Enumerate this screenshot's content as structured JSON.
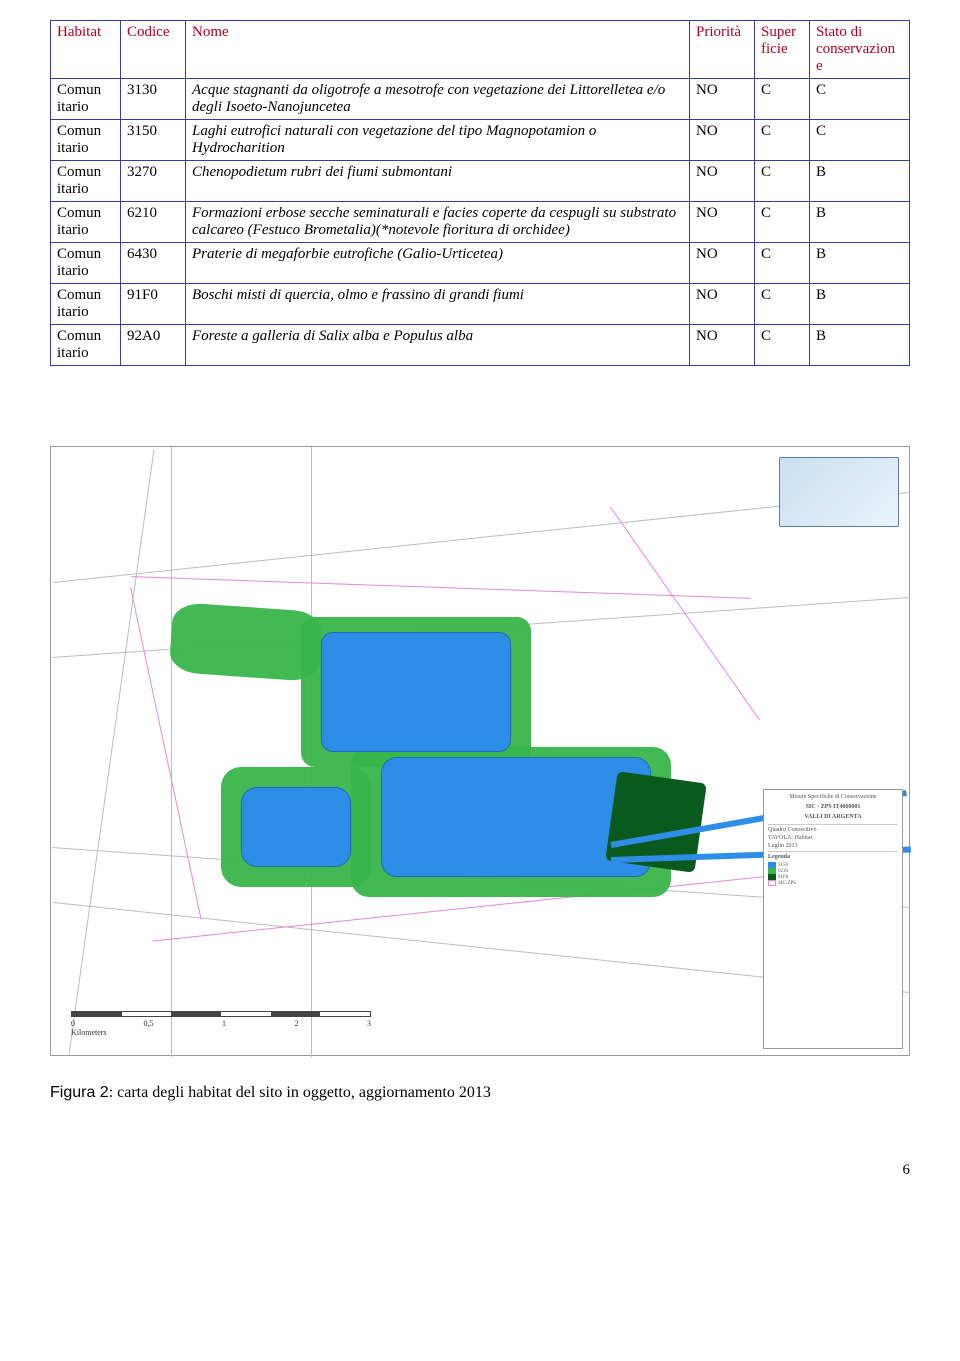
{
  "table": {
    "headers": {
      "habitat": "Habitat",
      "codice": "Codice",
      "nome": "Nome",
      "priorita": "Priorità",
      "superficie": "Super ficie",
      "stato": "Stato di conservazion e"
    },
    "rows": [
      {
        "habitat": "Comun itario",
        "codice": "3130",
        "nome": "Acque stagnanti da oligotrofe a mesotrofe con vegetazione dei Littorelletea e/o degli Isoeto-Nanojuncetea",
        "pri": "NO",
        "sup": "C",
        "stato": "C"
      },
      {
        "habitat": "Comun itario",
        "codice": "3150",
        "nome": "Laghi eutrofici naturali con vegetazione del tipo Magnopotamion o Hydrocharition",
        "pri": "NO",
        "sup": "C",
        "stato": "C"
      },
      {
        "habitat": "Comun itario",
        "codice": "3270",
        "nome": "Chenopodietum rubri dei fiumi submontani",
        "pri": "NO",
        "sup": "C",
        "stato": "B"
      },
      {
        "habitat": "Comun itario",
        "codice": "6210",
        "nome": "Formazioni erbose secche seminaturali e facies coperte da cespugli su substrato calcareo (Festuco Brometalia)(*notevole fioritura di orchidee)",
        "pri": "NO",
        "sup": "C",
        "stato": "B"
      },
      {
        "habitat": "Comun itario",
        "codice": "6430",
        "nome": "Praterie di megaforbie eutrofiche (Galio-Urticetea)",
        "pri": "NO",
        "sup": "C",
        "stato": "B"
      },
      {
        "habitat": "Comun itario",
        "codice": "91F0",
        "nome": "Boschi misti di quercia, olmo e frassino di grandi fiumi",
        "pri": "NO",
        "sup": "C",
        "stato": "B"
      },
      {
        "habitat": "Comun itario",
        "codice": "92A0",
        "nome": "Foreste a galleria di Salix alba e Populus alba",
        "pri": "NO",
        "sup": "C",
        "stato": "B"
      }
    ],
    "header_color": "#b00020",
    "border_color": "#3b3b9e"
  },
  "map": {
    "scalebar": {
      "ticks": [
        "0",
        "0,5",
        "1",
        "2",
        "3"
      ],
      "unit": "Kilometers"
    },
    "infobox": {
      "title": "Misure Specifiche di Conservazione",
      "subtitle1": "SIC - ZPS IT4060001",
      "subtitle2": "VALLI DI ARGENTA",
      "section": "Quadro Conoscitivo",
      "tavola": "TAVOLA: Habitat",
      "date": "Luglio 2013",
      "legend_title": "Legenda"
    },
    "colors": {
      "water": "#2e8de6",
      "wetland": "#39b54a",
      "forest": "#0a5a1e",
      "road": "#e28ad4",
      "grid": "#bdbdbd",
      "frame": "#999999",
      "background": "#ffffff"
    }
  },
  "caption": {
    "label": "Figura 2",
    "text": ": carta degli habitat del sito in oggetto, aggiornamento 2013"
  },
  "page_number": "6"
}
